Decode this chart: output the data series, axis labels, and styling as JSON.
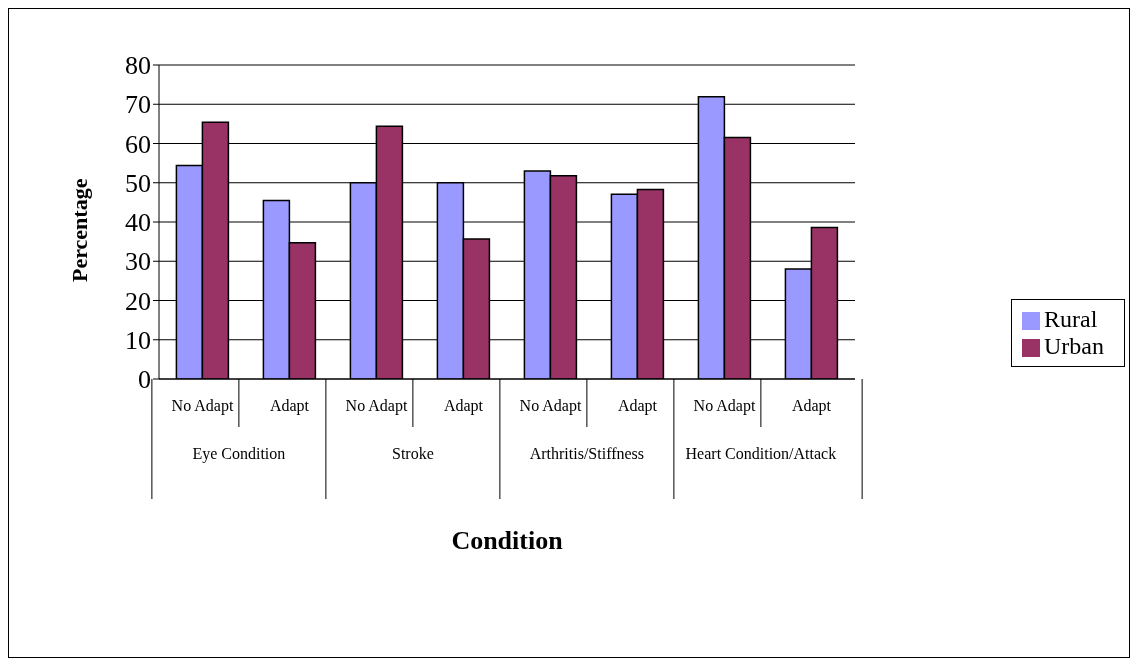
{
  "chart_data": {
    "type": "bar",
    "xlabel": "Condition",
    "ylabel": "Percentage",
    "categories": [
      "No Adapt",
      "Adapt",
      "No Adapt",
      "Adapt",
      "No Adapt",
      "Adapt",
      "No Adapt",
      "Adapt"
    ],
    "annotations": [
      "Eye Condition",
      "Stroke",
      "Arthritis/Stiffness",
      "Heart Condition/Attack"
    ],
    "series": [
      {
        "name": "Rural",
        "color": "#9999ff",
        "values": [
          54.4,
          45.5,
          50.0,
          50.0,
          53.0,
          47.1,
          71.9,
          28.0
        ]
      },
      {
        "name": "Urban",
        "color": "#993366",
        "values": [
          65.4,
          34.7,
          64.4,
          35.7,
          51.8,
          48.3,
          61.5,
          38.6
        ]
      }
    ],
    "ylim": [
      0,
      80
    ],
    "yticks": [
      0,
      10,
      20,
      30,
      40,
      50,
      60,
      70,
      80
    ],
    "grid": "y",
    "legend": "right"
  }
}
